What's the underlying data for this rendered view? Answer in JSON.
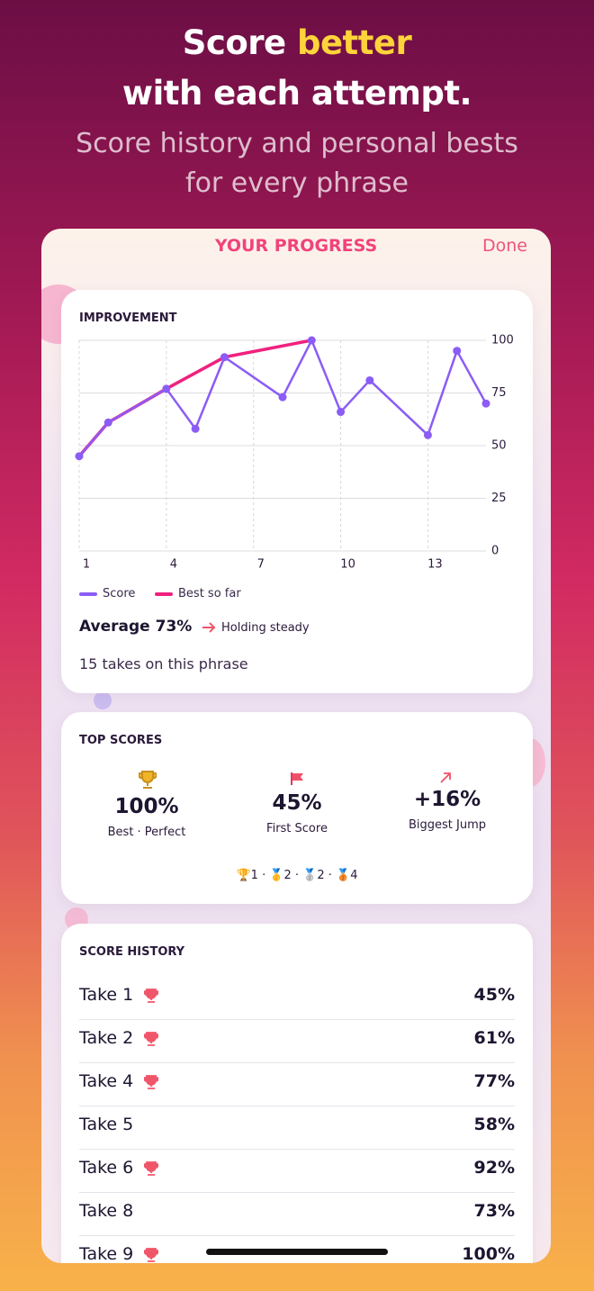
{
  "header": {
    "title_start": "Score ",
    "title_highlight": "better",
    "title_end": "with each attempt.",
    "subtitle": "Score history and personal bests for every phrase"
  },
  "panel": {
    "title": "YOUR PROGRESS",
    "done": "Done"
  },
  "chart_data": {
    "type": "line",
    "title": "IMPROVEMENT",
    "series": [
      {
        "name": "Score",
        "color": "#8b5cf6",
        "x": [
          1,
          2,
          4,
          5,
          6,
          8,
          9,
          10,
          11,
          13,
          14,
          15
        ],
        "values": [
          45,
          61,
          77,
          58,
          92,
          73,
          100,
          66,
          81,
          55,
          95,
          70
        ]
      },
      {
        "name": "Best so far",
        "color": "#f0217f",
        "x": [
          1,
          2,
          4,
          6,
          9
        ],
        "values": [
          45,
          61,
          77,
          92,
          100
        ]
      }
    ],
    "xlim": [
      1,
      15
    ],
    "xticks": [
      1,
      4,
      7,
      10,
      13
    ],
    "ylim": [
      0,
      100
    ],
    "yticks": [
      0,
      25,
      50,
      75,
      100
    ],
    "grid": true
  },
  "improvement": {
    "average": "Average 73%",
    "trend": "Holding steady",
    "takes": "15 takes on this phrase"
  },
  "top_scores": {
    "title": "TOP SCORES",
    "stats": [
      {
        "value": "100%",
        "label": "Best · Perfect"
      },
      {
        "value": "45%",
        "label": "First Score"
      },
      {
        "value": "+16%",
        "label": "Biggest Jump"
      }
    ],
    "medals": "🏆1 · 🥇2 · 🥈2 · 🥉4"
  },
  "history": {
    "title": "SCORE HISTORY",
    "rows": [
      {
        "take": "Take 1",
        "trophy": true,
        "score": "45%"
      },
      {
        "take": "Take 2",
        "trophy": true,
        "score": "61%"
      },
      {
        "take": "Take 4",
        "trophy": true,
        "score": "77%"
      },
      {
        "take": "Take 5",
        "trophy": false,
        "score": "58%"
      },
      {
        "take": "Take 6",
        "trophy": true,
        "score": "92%"
      },
      {
        "take": "Take 8",
        "trophy": false,
        "score": "73%"
      },
      {
        "take": "Take 9",
        "trophy": true,
        "score": "100%"
      }
    ]
  }
}
